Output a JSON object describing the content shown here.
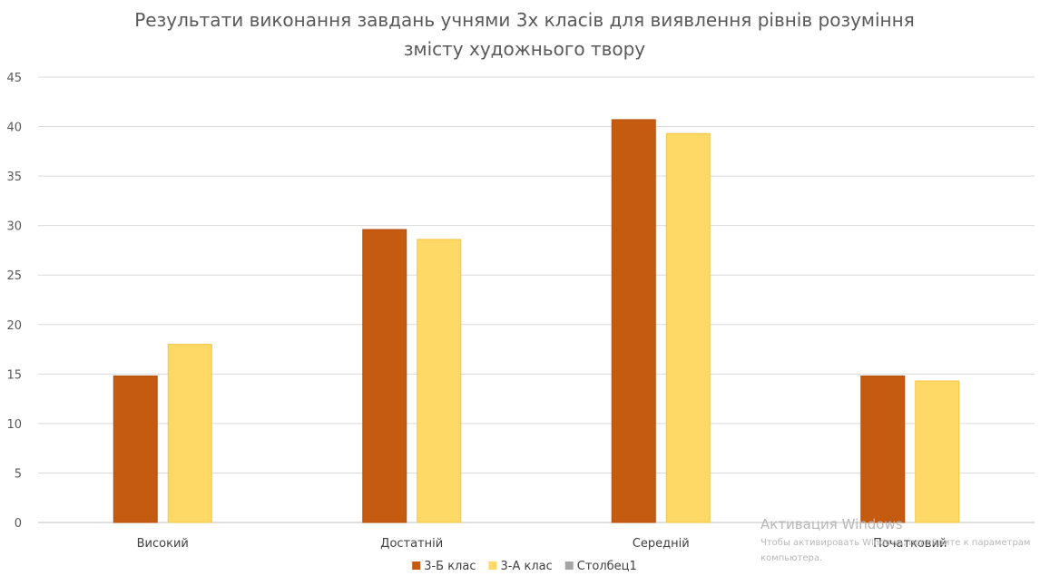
{
  "chart_data": {
    "type": "bar",
    "title_lines": [
      "Результати виконання завдань учнями 3х класів для виявлення рівнів розуміння",
      "змісту художнього твору"
    ],
    "categories": [
      "Високий",
      "Достатній",
      "Середній",
      "Початковий"
    ],
    "series": [
      {
        "name": "3-Б клас",
        "values": [
          14.8,
          29.6,
          40.7,
          14.8
        ],
        "color": "#C55A11"
      },
      {
        "name": "3-А клас",
        "values": [
          18.0,
          28.6,
          39.3,
          14.3
        ],
        "color": "#FFD966"
      },
      {
        "name": "Столбец1",
        "values": [
          null,
          null,
          null,
          null
        ],
        "color": "#A5A5A5"
      }
    ],
    "ylim": [
      0,
      45
    ],
    "yticks": [
      0,
      5,
      10,
      15,
      20,
      25,
      30,
      35,
      40,
      45
    ],
    "grid": true,
    "legend_position": "bottom",
    "xlabel": "",
    "ylabel": ""
  },
  "watermark": {
    "title": "Активация Windows",
    "line1": "Чтобы активировать Windows, перейдите к параметрам",
    "line2": "компьютера."
  }
}
